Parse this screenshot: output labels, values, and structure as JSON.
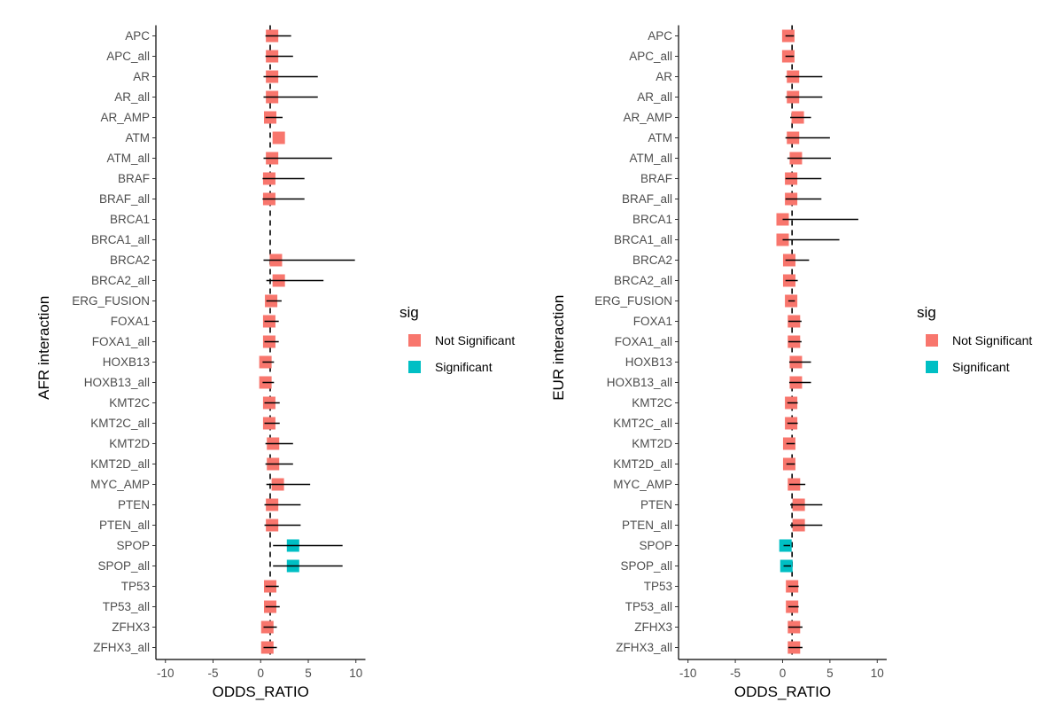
{
  "chart_data": [
    {
      "type": "forest",
      "xlabel": "ODDS_RATIO",
      "ylabel": "AFR interaction",
      "xlim": [
        -11,
        11
      ],
      "xticks": [
        -10,
        -5,
        0,
        5,
        10
      ],
      "reference_line": 1,
      "legend": {
        "title": "sig",
        "placement": "right"
      },
      "categories": [
        "APC",
        "APC_all",
        "AR",
        "AR_all",
        "AR_AMP",
        "ATM",
        "ATM_all",
        "BRAF",
        "BRAF_all",
        "BRCA1",
        "BRCA1_all",
        "BRCA2",
        "BRCA2_all",
        "ERG_FUSION",
        "FOXA1",
        "FOXA1_all",
        "HOXB13",
        "HOXB13_all",
        "KMT2C",
        "KMT2C_all",
        "KMT2D",
        "KMT2D_all",
        "MYC_AMP",
        "PTEN",
        "PTEN_all",
        "SPOP",
        "SPOP_all",
        "TP53",
        "TP53_all",
        "ZFHX3",
        "ZFHX3_all"
      ],
      "points": [
        {
          "label": "APC",
          "or": 1.2,
          "lo": 0.5,
          "hi": 3.2,
          "sig": "Not Significant"
        },
        {
          "label": "APC_all",
          "or": 1.2,
          "lo": 0.5,
          "hi": 3.4,
          "sig": "Not Significant"
        },
        {
          "label": "AR",
          "or": 1.2,
          "lo": 0.3,
          "hi": 6.0,
          "sig": "Not Significant"
        },
        {
          "label": "AR_all",
          "or": 1.2,
          "lo": 0.3,
          "hi": 6.0,
          "sig": "Not Significant"
        },
        {
          "label": "AR_AMP",
          "or": 1.0,
          "lo": 0.5,
          "hi": 2.3,
          "sig": "Not Significant"
        },
        {
          "label": "ATM",
          "or": 1.9,
          "lo": null,
          "hi": null,
          "sig": "Not Significant"
        },
        {
          "label": "ATM_all",
          "or": 1.2,
          "lo": 0.3,
          "hi": 7.5,
          "sig": "Not Significant"
        },
        {
          "label": "BRAF",
          "or": 0.9,
          "lo": 0.2,
          "hi": 4.6,
          "sig": "Not Significant"
        },
        {
          "label": "BRAF_all",
          "or": 0.9,
          "lo": 0.2,
          "hi": 4.6,
          "sig": "Not Significant"
        },
        {
          "label": "BRCA1",
          "or": null,
          "lo": null,
          "hi": null,
          "sig": "Not Significant"
        },
        {
          "label": "BRCA1_all",
          "or": null,
          "lo": null,
          "hi": null,
          "sig": "Not Significant"
        },
        {
          "label": "BRCA2",
          "or": 1.6,
          "lo": 0.3,
          "hi": 9.9,
          "sig": "Not Significant"
        },
        {
          "label": "BRCA2_all",
          "or": 1.9,
          "lo": 0.6,
          "hi": 6.6,
          "sig": "Not Significant"
        },
        {
          "label": "ERG_FUSION",
          "or": 1.1,
          "lo": 0.6,
          "hi": 2.2,
          "sig": "Not Significant"
        },
        {
          "label": "FOXA1",
          "or": 0.9,
          "lo": 0.4,
          "hi": 1.9,
          "sig": "Not Significant"
        },
        {
          "label": "FOXA1_all",
          "or": 0.9,
          "lo": 0.4,
          "hi": 1.9,
          "sig": "Not Significant"
        },
        {
          "label": "HOXB13",
          "or": 0.5,
          "lo": 0.2,
          "hi": 1.4,
          "sig": "Not Significant"
        },
        {
          "label": "HOXB13_all",
          "or": 0.5,
          "lo": 0.2,
          "hi": 1.4,
          "sig": "Not Significant"
        },
        {
          "label": "KMT2C",
          "or": 0.9,
          "lo": 0.4,
          "hi": 2.0,
          "sig": "Not Significant"
        },
        {
          "label": "KMT2C_all",
          "or": 0.9,
          "lo": 0.4,
          "hi": 2.0,
          "sig": "Not Significant"
        },
        {
          "label": "KMT2D",
          "or": 1.3,
          "lo": 0.5,
          "hi": 3.4,
          "sig": "Not Significant"
        },
        {
          "label": "KMT2D_all",
          "or": 1.3,
          "lo": 0.5,
          "hi": 3.4,
          "sig": "Not Significant"
        },
        {
          "label": "MYC_AMP",
          "or": 1.8,
          "lo": 0.6,
          "hi": 5.2,
          "sig": "Not Significant"
        },
        {
          "label": "PTEN",
          "or": 1.2,
          "lo": 0.4,
          "hi": 4.2,
          "sig": "Not Significant"
        },
        {
          "label": "PTEN_all",
          "or": 1.2,
          "lo": 0.4,
          "hi": 4.2,
          "sig": "Not Significant"
        },
        {
          "label": "SPOP",
          "or": 3.4,
          "lo": 1.3,
          "hi": 8.6,
          "sig": "Significant"
        },
        {
          "label": "SPOP_all",
          "or": 3.4,
          "lo": 1.3,
          "hi": 8.6,
          "sig": "Significant"
        },
        {
          "label": "TP53",
          "or": 1.0,
          "lo": 0.5,
          "hi": 1.9,
          "sig": "Not Significant"
        },
        {
          "label": "TP53_all",
          "or": 1.0,
          "lo": 0.5,
          "hi": 2.0,
          "sig": "Not Significant"
        },
        {
          "label": "ZFHX3",
          "or": 0.7,
          "lo": 0.3,
          "hi": 1.7,
          "sig": "Not Significant"
        },
        {
          "label": "ZFHX3_all",
          "or": 0.7,
          "lo": 0.3,
          "hi": 1.7,
          "sig": "Not Significant"
        }
      ]
    },
    {
      "type": "forest",
      "xlabel": "ODDS_RATIO",
      "ylabel": "EUR interaction",
      "xlim": [
        -11,
        11
      ],
      "xticks": [
        -10,
        -5,
        0,
        5,
        10
      ],
      "reference_line": 1,
      "legend": {
        "title": "sig",
        "placement": "right"
      },
      "categories": [
        "APC",
        "APC_all",
        "AR",
        "AR_all",
        "AR_AMP",
        "ATM",
        "ATM_all",
        "BRAF",
        "BRAF_all",
        "BRCA1",
        "BRCA1_all",
        "BRCA2",
        "BRCA2_all",
        "ERG_FUSION",
        "FOXA1",
        "FOXA1_all",
        "HOXB13",
        "HOXB13_all",
        "KMT2C",
        "KMT2C_all",
        "KMT2D",
        "KMT2D_all",
        "MYC_AMP",
        "PTEN",
        "PTEN_all",
        "SPOP",
        "SPOP_all",
        "TP53",
        "TP53_all",
        "ZFHX3",
        "ZFHX3_all"
      ],
      "points": [
        {
          "label": "APC",
          "or": 0.6,
          "lo": 0.3,
          "hi": 1.2,
          "sig": "Not Significant"
        },
        {
          "label": "APC_all",
          "or": 0.6,
          "lo": 0.3,
          "hi": 1.2,
          "sig": "Not Significant"
        },
        {
          "label": "AR",
          "or": 1.1,
          "lo": 0.3,
          "hi": 4.2,
          "sig": "Not Significant"
        },
        {
          "label": "AR_all",
          "or": 1.1,
          "lo": 0.3,
          "hi": 4.2,
          "sig": "Not Significant"
        },
        {
          "label": "AR_AMP",
          "or": 1.6,
          "lo": 0.8,
          "hi": 3.0,
          "sig": "Not Significant"
        },
        {
          "label": "ATM",
          "or": 1.1,
          "lo": 0.3,
          "hi": 5.0,
          "sig": "Not Significant"
        },
        {
          "label": "ATM_all",
          "or": 1.4,
          "lo": 0.5,
          "hi": 5.1,
          "sig": "Not Significant"
        },
        {
          "label": "BRAF",
          "or": 0.9,
          "lo": 0.3,
          "hi": 4.1,
          "sig": "Not Significant"
        },
        {
          "label": "BRAF_all",
          "or": 0.9,
          "lo": 0.3,
          "hi": 4.1,
          "sig": "Not Significant"
        },
        {
          "label": "BRCA1",
          "or": 0.0,
          "lo": 0.0,
          "hi": 8.0,
          "sig": "Not Significant"
        },
        {
          "label": "BRCA1_all",
          "or": 0.0,
          "lo": 0.0,
          "hi": 6.0,
          "sig": "Not Significant"
        },
        {
          "label": "BRCA2",
          "or": 0.7,
          "lo": 0.3,
          "hi": 2.8,
          "sig": "Not Significant"
        },
        {
          "label": "BRCA2_all",
          "or": 0.7,
          "lo": 0.3,
          "hi": 1.6,
          "sig": "Not Significant"
        },
        {
          "label": "ERG_FUSION",
          "or": 0.9,
          "lo": 0.6,
          "hi": 1.3,
          "sig": "Not Significant"
        },
        {
          "label": "FOXA1",
          "or": 1.2,
          "lo": 0.6,
          "hi": 2.0,
          "sig": "Not Significant"
        },
        {
          "label": "FOXA1_all",
          "or": 1.2,
          "lo": 0.6,
          "hi": 2.0,
          "sig": "Not Significant"
        },
        {
          "label": "HOXB13",
          "or": 1.4,
          "lo": 0.7,
          "hi": 3.0,
          "sig": "Not Significant"
        },
        {
          "label": "HOXB13_all",
          "or": 1.4,
          "lo": 0.7,
          "hi": 3.0,
          "sig": "Not Significant"
        },
        {
          "label": "KMT2C",
          "or": 0.9,
          "lo": 0.5,
          "hi": 1.6,
          "sig": "Not Significant"
        },
        {
          "label": "KMT2C_all",
          "or": 0.9,
          "lo": 0.5,
          "hi": 1.6,
          "sig": "Not Significant"
        },
        {
          "label": "KMT2D",
          "or": 0.7,
          "lo": 0.4,
          "hi": 1.3,
          "sig": "Not Significant"
        },
        {
          "label": "KMT2D_all",
          "or": 0.7,
          "lo": 0.4,
          "hi": 1.3,
          "sig": "Not Significant"
        },
        {
          "label": "MYC_AMP",
          "or": 1.2,
          "lo": 0.7,
          "hi": 2.4,
          "sig": "Not Significant"
        },
        {
          "label": "PTEN",
          "or": 1.7,
          "lo": 0.8,
          "hi": 4.2,
          "sig": "Not Significant"
        },
        {
          "label": "PTEN_all",
          "or": 1.7,
          "lo": 0.8,
          "hi": 4.2,
          "sig": "Not Significant"
        },
        {
          "label": "SPOP",
          "or": 0.3,
          "lo": 0.1,
          "hi": 0.8,
          "sig": "Significant"
        },
        {
          "label": "SPOP_all",
          "or": 0.4,
          "lo": 0.1,
          "hi": 0.9,
          "sig": "Significant"
        },
        {
          "label": "TP53",
          "or": 1.0,
          "lo": 0.6,
          "hi": 1.7,
          "sig": "Not Significant"
        },
        {
          "label": "TP53_all",
          "or": 1.0,
          "lo": 0.6,
          "hi": 1.7,
          "sig": "Not Significant"
        },
        {
          "label": "ZFHX3",
          "or": 1.2,
          "lo": 0.6,
          "hi": 2.1,
          "sig": "Not Significant"
        },
        {
          "label": "ZFHX3_all",
          "or": 1.2,
          "lo": 0.6,
          "hi": 2.1,
          "sig": "Not Significant"
        }
      ]
    }
  ],
  "legend_items": [
    {
      "label": "Not Significant",
      "color": "#F8766D"
    },
    {
      "label": "Significant",
      "color": "#00BFC4"
    }
  ]
}
